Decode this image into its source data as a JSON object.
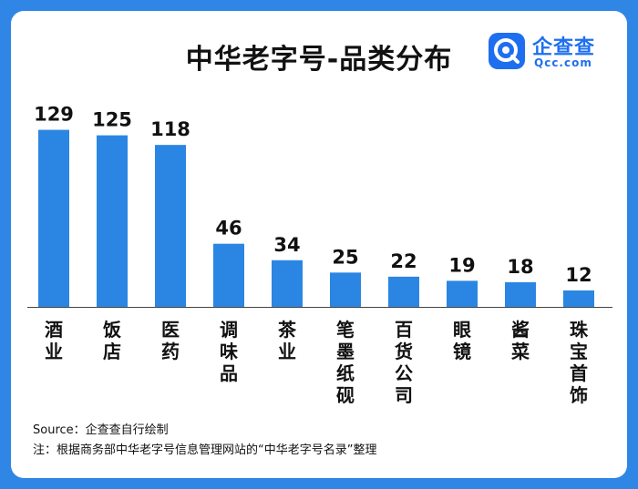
{
  "title": "中华老字号-品类分布",
  "logo": {
    "name_cn": "企查查",
    "name_en": "Qcc.com",
    "icon": "qcc-logo-icon"
  },
  "source_note": "Source：企查查自行绘制",
  "footnote": "注：根据商务部中华老字号信息管理网站的“中华老字号名录”整理",
  "colors": {
    "bar": "#2b86e3",
    "frame": "#2f86e4",
    "axis": "#444444"
  },
  "chart_data": {
    "type": "bar",
    "categories": [
      "酒业",
      "饭店",
      "医药",
      "调味品",
      "茶业",
      "笔墨纸砚",
      "百货公司",
      "眼镜",
      "酱菜",
      "珠宝首饰"
    ],
    "values": [
      129,
      125,
      118,
      46,
      34,
      25,
      22,
      19,
      18,
      12
    ],
    "title": "中华老字号-品类分布",
    "xlabel": "",
    "ylabel": "",
    "ylim": [
      0,
      140
    ],
    "grid": false,
    "legend": "none",
    "data_labels": true
  }
}
